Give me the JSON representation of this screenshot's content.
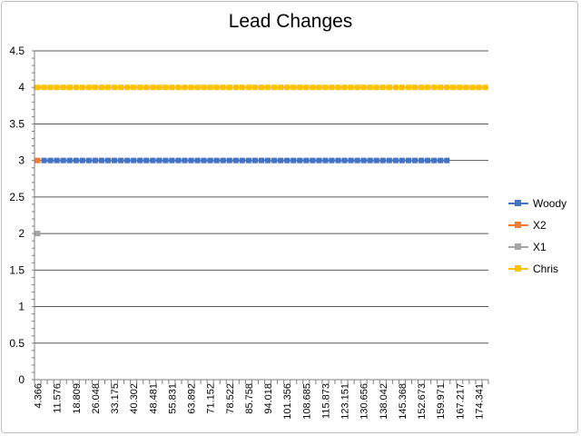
{
  "chart_data": {
    "type": "line",
    "title": "Lead Changes",
    "xlabel": "",
    "ylabel": "",
    "ylim": [
      0,
      4.5
    ],
    "yticks": [
      "0",
      "0.5",
      "1",
      "1.5",
      "2",
      "2.5",
      "3",
      "3.5",
      "4",
      "4.5"
    ],
    "x_labels": [
      "4.366",
      "11.576",
      "18.809",
      "26.048",
      "33.175",
      "40.302",
      "48.481",
      "55.831",
      "63.892",
      "71.152",
      "78.522",
      "85.758",
      "94.018",
      "101.356",
      "108.685",
      "115.873",
      "123.151",
      "130.656",
      "138.042",
      "145.368",
      "152.673",
      "159.971",
      "167.217",
      "174.341"
    ],
    "category_count": 71,
    "grid": true,
    "legend_position": "right",
    "series": [
      {
        "name": "Woody",
        "color": "#4472C4",
        "value": 3,
        "start_index": 1,
        "end_index": 64
      },
      {
        "name": "X2",
        "color": "#ED7D31",
        "value": 3,
        "start_index": 0,
        "end_index": 0
      },
      {
        "name": "X1",
        "color": "#A5A5A5",
        "value": 2,
        "start_index": 0,
        "end_index": 0
      },
      {
        "name": "Chris",
        "color": "#FFC000",
        "value": 4,
        "start_index": 0,
        "end_index": 70
      }
    ]
  }
}
